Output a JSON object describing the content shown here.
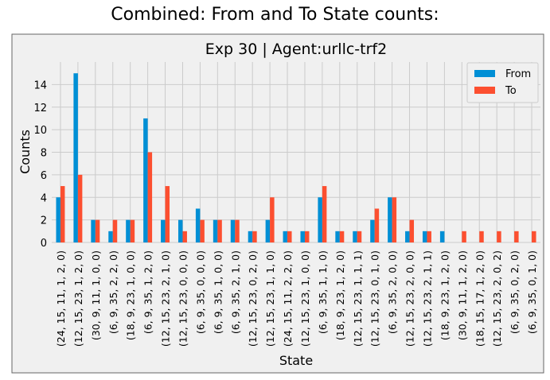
{
  "page_title": "Combined: From and To State counts:",
  "chart_data": {
    "type": "bar",
    "title": "Exp 30 | Agent:urllc-trf2",
    "xlabel": "State",
    "ylabel": "Counts",
    "ylim": [
      0,
      16
    ],
    "yticks": [
      0,
      2,
      4,
      6,
      8,
      10,
      12,
      14
    ],
    "grid": true,
    "legend_position": "top-right",
    "categories": [
      "(24, 15, 11, 1, 2, 0)",
      "(12, 15, 23, 1, 2, 0)",
      "(30, 9, 11, 1, 0, 0)",
      "(6, 9, 35, 2, 2, 0)",
      "(18, 9, 23, 1, 0, 0)",
      "(6, 9, 35, 1, 2, 0)",
      "(12, 15, 23, 2, 1, 0)",
      "(12, 15, 23, 0, 0, 0)",
      "(6, 9, 35, 0, 0, 0)",
      "(6, 9, 35, 1, 0, 0)",
      "(6, 9, 35, 2, 1, 0)",
      "(12, 15, 23, 0, 2, 0)",
      "(12, 15, 23, 1, 1, 0)",
      "(24, 15, 11, 2, 2, 0)",
      "(12, 15, 23, 1, 0, 0)",
      "(6, 9, 35, 1, 1, 0)",
      "(18, 9, 23, 1, 2, 0)",
      "(12, 15, 23, 1, 1, 1)",
      "(12, 15, 23, 0, 1, 0)",
      "(6, 9, 35, 2, 0, 0)",
      "(12, 15, 23, 2, 0, 0)",
      "(12, 15, 23, 2, 1, 1)",
      "(18, 9, 23, 1, 2, 0)",
      "(30, 9, 11, 1, 2, 0)",
      "(18, 15, 17, 1, 2, 0)",
      "(12, 15, 23, 2, 0, 2)",
      "(6, 9, 35, 0, 2, 0)",
      "(6, 9, 35, 0, 1, 0)"
    ],
    "series": [
      {
        "name": "From",
        "color": "#008fd5",
        "values": [
          4,
          15,
          2,
          1,
          2,
          11,
          2,
          2,
          3,
          2,
          2,
          1,
          2,
          1,
          1,
          4,
          1,
          1,
          2,
          4,
          1,
          1,
          1,
          0,
          0,
          0,
          0,
          0
        ]
      },
      {
        "name": "To",
        "color": "#fc4f30",
        "values": [
          5,
          6,
          2,
          2,
          2,
          8,
          5,
          1,
          2,
          2,
          2,
          1,
          4,
          1,
          1,
          5,
          1,
          1,
          3,
          4,
          2,
          1,
          0,
          1,
          1,
          1,
          1,
          1
        ]
      }
    ]
  }
}
